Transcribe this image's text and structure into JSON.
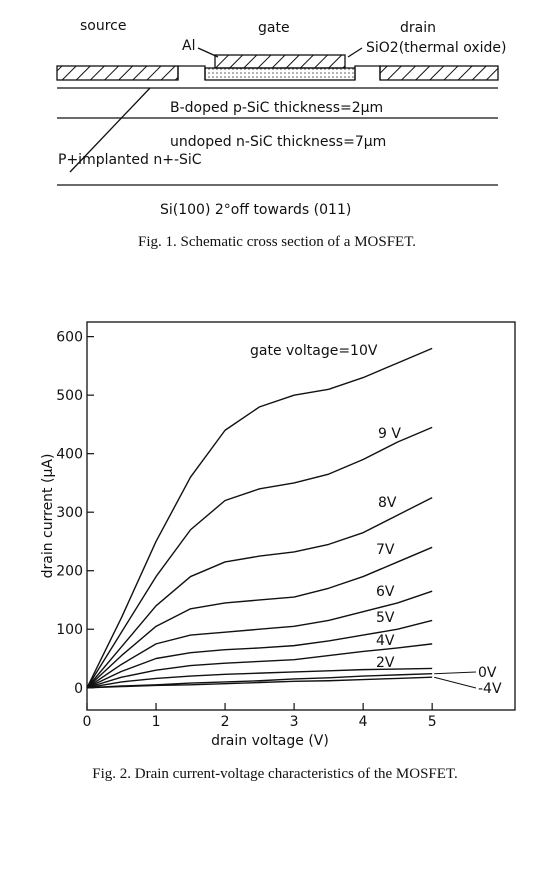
{
  "figure1": {
    "labels": [
      "source",
      "gate",
      "drain",
      "Al",
      "SiO2(thermal oxide)",
      "B-doped p-SiC  thickness=2µm",
      "undoped n-SiC  thickness=7µm",
      "P+implanted n+-SiC",
      "Si(100) 2°off  towards (011)"
    ],
    "caption": "Fig. 1.   Schematic cross section of a MOSFET."
  },
  "chart_data": {
    "type": "line",
    "x": [
      0,
      0.5,
      1,
      1.5,
      2,
      2.5,
      3,
      3.5,
      4,
      4.5,
      5
    ],
    "series": [
      {
        "name": "gate voltage=10V",
        "color": "#111111",
        "values": [
          0,
          120,
          250,
          360,
          440,
          480,
          500,
          510,
          530,
          555,
          580
        ]
      },
      {
        "name": "9 V",
        "color": "#111111",
        "values": [
          0,
          95,
          190,
          270,
          320,
          340,
          350,
          365,
          390,
          420,
          445
        ]
      },
      {
        "name": "8V",
        "color": "#111111",
        "values": [
          0,
          70,
          140,
          190,
          215,
          225,
          232,
          245,
          265,
          295,
          325
        ]
      },
      {
        "name": "7V",
        "color": "#111111",
        "values": [
          0,
          55,
          105,
          135,
          145,
          150,
          155,
          170,
          190,
          215,
          240
        ]
      },
      {
        "name": "6V",
        "color": "#111111",
        "values": [
          0,
          40,
          75,
          90,
          95,
          100,
          105,
          115,
          130,
          145,
          165
        ]
      },
      {
        "name": "5V",
        "color": "#111111",
        "values": [
          0,
          28,
          50,
          60,
          65,
          68,
          72,
          80,
          90,
          100,
          115
        ]
      },
      {
        "name": "4V",
        "color": "#111111",
        "values": [
          0,
          18,
          30,
          38,
          42,
          45,
          48,
          55,
          62,
          68,
          75
        ]
      },
      {
        "name": "2V",
        "color": "#111111",
        "values": [
          0,
          10,
          16,
          20,
          23,
          25,
          27,
          29,
          31,
          32,
          33
        ]
      },
      {
        "name": "0V",
        "color": "#111111",
        "values": [
          0,
          3,
          5,
          8,
          10,
          12,
          15,
          17,
          20,
          22,
          24
        ]
      },
      {
        "name": "-4V",
        "color": "#111111",
        "values": [
          0,
          2,
          4,
          5,
          7,
          9,
          11,
          12,
          14,
          16,
          18
        ]
      }
    ],
    "xlabel": "drain voltage (V)",
    "ylabel": "drain current (µA)",
    "xlim": [
      0,
      6.2
    ],
    "xticks": [
      0,
      1,
      2,
      3,
      4,
      5
    ],
    "ylim": [
      -38,
      625
    ],
    "yticks": [
      0,
      100,
      200,
      300,
      400,
      500,
      600
    ],
    "caption": "Fig. 2.   Drain current-voltage characteristics of the MOSFET."
  }
}
